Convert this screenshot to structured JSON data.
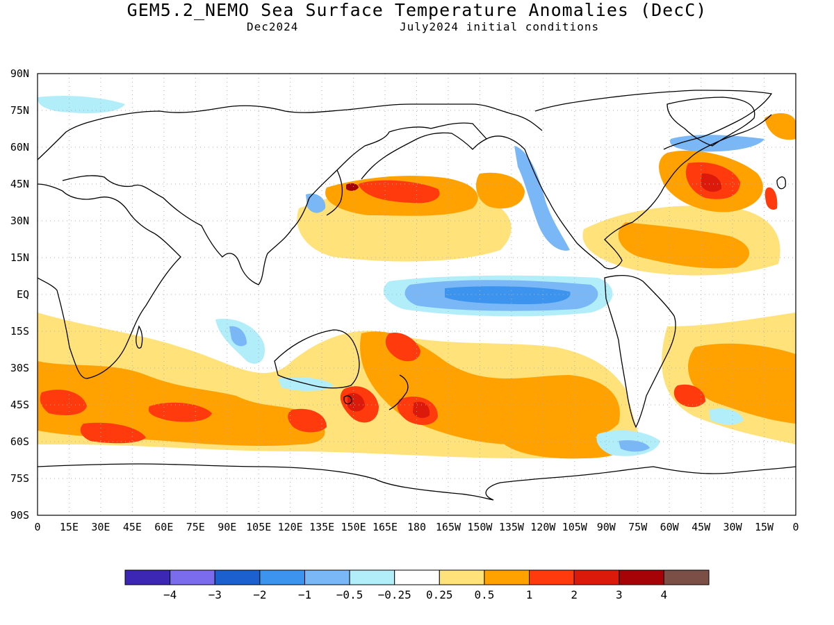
{
  "title": "GEM5.2_NEMO Sea Surface Temperature Anomalies (DecC)",
  "subtitle_left": "Dec2024",
  "subtitle_right": "July2024 initial conditions",
  "lat_labels": [
    "90N",
    "75N",
    "60N",
    "45N",
    "30N",
    "15N",
    "EQ",
    "15S",
    "30S",
    "45S",
    "60S",
    "75S",
    "90S"
  ],
  "lon_labels": [
    "0",
    "15E",
    "30E",
    "45E",
    "60E",
    "75E",
    "90E",
    "105E",
    "120E",
    "135E",
    "150E",
    "165E",
    "180",
    "165W",
    "150W",
    "135W",
    "120W",
    "105W",
    "90W",
    "75W",
    "60W",
    "45W",
    "30W",
    "15W",
    "0"
  ],
  "colorbar": {
    "colors": [
      "#3c27b4",
      "#7b6cee",
      "#1c5fcf",
      "#3d94ee",
      "#7ab7f6",
      "#b2edfa",
      "#ffffff",
      "#ffe27a",
      "#ffa200",
      "#ff3b0d",
      "#dc1a0c",
      "#a50305",
      "#7b4f45"
    ],
    "labels": [
      "−4",
      "−3",
      "−2",
      "−1",
      "−0.5",
      "−0.25",
      "0.25",
      "0.5",
      "1",
      "2",
      "3",
      "4"
    ]
  },
  "map_colors": {
    "land_outline": "#000000",
    "grid": "#b0b0b0",
    "weak_warm": "#ffe27a",
    "warm": "#ffa200",
    "hot": "#ff3b0d",
    "very_hot": "#dc1a0c",
    "extreme": "#a50305",
    "weak_cool": "#b2edfa",
    "cool": "#7ab7f6",
    "cold": "#3d94ee"
  }
}
